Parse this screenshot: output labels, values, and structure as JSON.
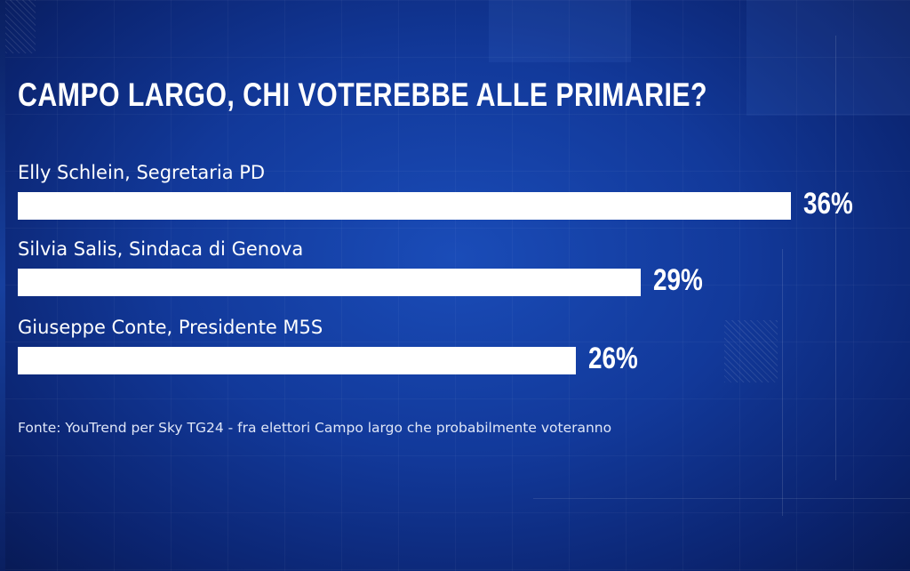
{
  "title": "CAMPO LARGO, CHI VOTEREBBE ALLE PRIMARIE?",
  "source": "Fonte: YouTrend per Sky TG24 - fra elettori Campo largo che probabilmente voteranno",
  "chart_data": {
    "type": "bar",
    "orientation": "horizontal",
    "title": "CAMPO LARGO, CHI VOTEREBBE ALLE PRIMARIE?",
    "categories": [
      "Elly Schlein, Segretaria PD",
      "Silvia Salis, Sindaca di Genova",
      "Giuseppe Conte, Presidente M5S"
    ],
    "values": [
      36,
      29,
      26
    ],
    "value_labels": [
      "36%",
      "29%",
      "26%"
    ],
    "unit": "%",
    "bar_color": "#ffffff",
    "grid": false,
    "legend": "none"
  },
  "colors": {
    "background": "#12399a",
    "bar": "#ffffff",
    "text": "#ffffff"
  }
}
